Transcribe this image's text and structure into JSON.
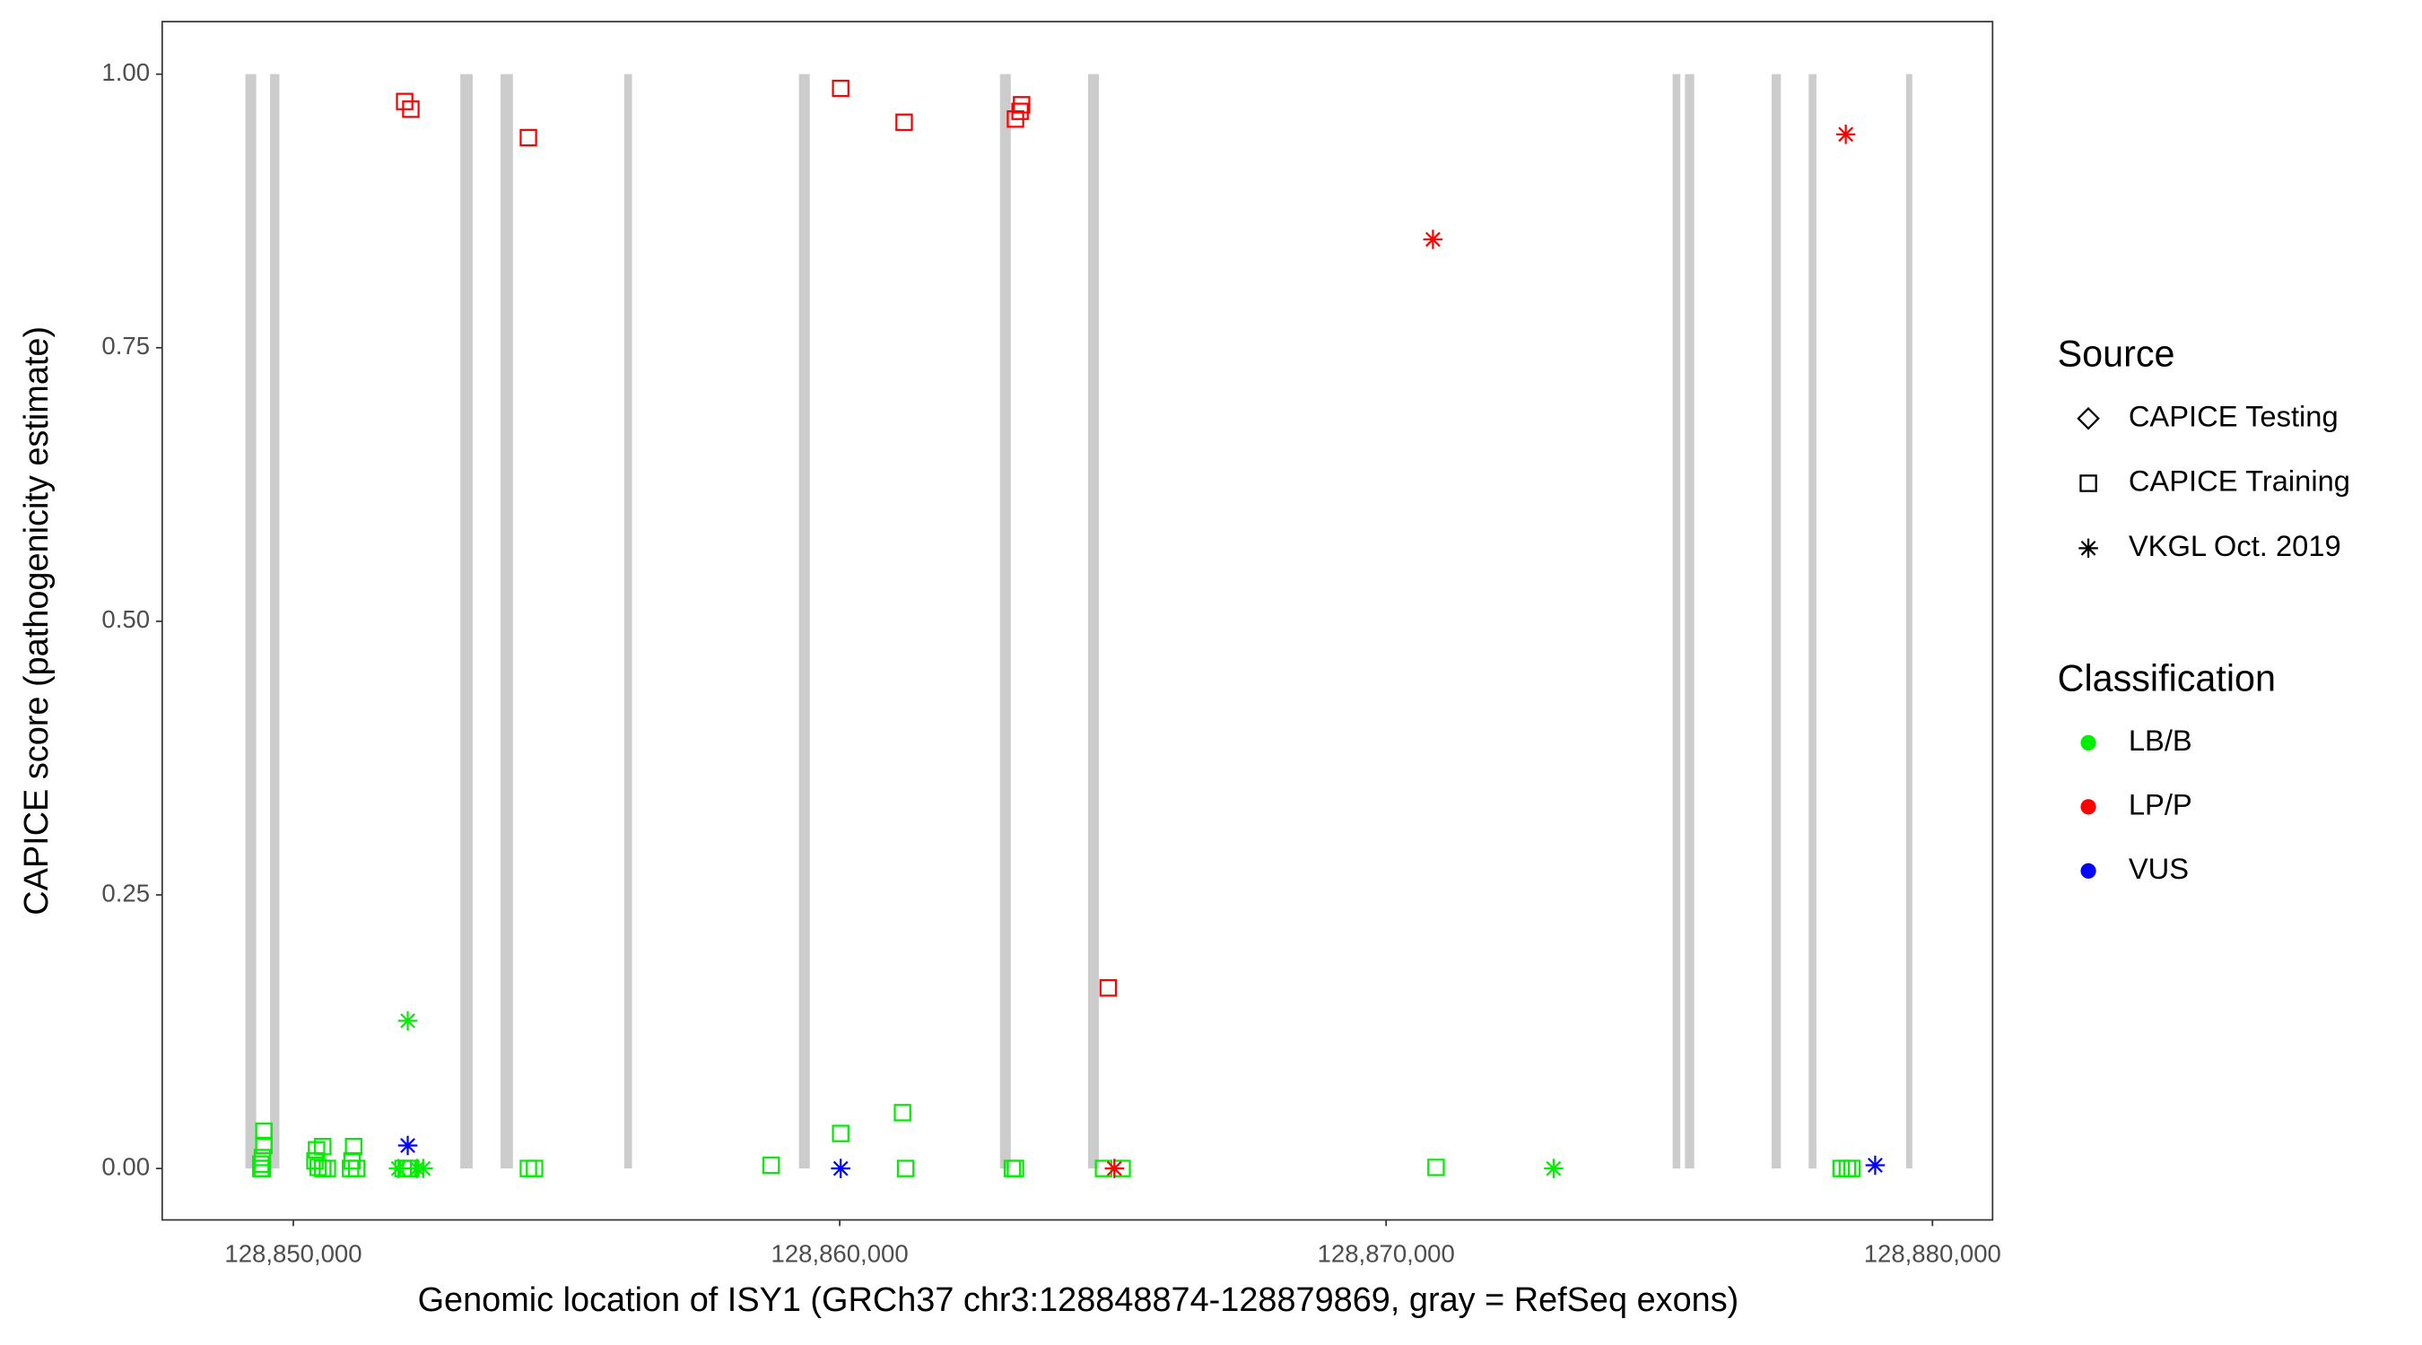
{
  "chart_data": {
    "type": "scatter",
    "xlabel": "Genomic location of ISY1 (GRCh37 chr3:128848874-128879869, gray = RefSeq exons)",
    "ylabel": "CAPICE score (pathogenicity estimate)",
    "xlim": [
      128847600,
      128881100
    ],
    "ylim": [
      -0.047,
      1.048
    ],
    "xticks": [
      {
        "value": 128850000,
        "label": "128,850,000"
      },
      {
        "value": 128860000,
        "label": "128,860,000"
      },
      {
        "value": 128870000,
        "label": "128,870,000"
      },
      {
        "value": 128880000,
        "label": "128,880,000"
      }
    ],
    "yticks": [
      {
        "value": 0,
        "label": "0.00"
      },
      {
        "value": 0.25,
        "label": "0.25"
      },
      {
        "value": 0.5,
        "label": "0.50"
      },
      {
        "value": 0.75,
        "label": "0.75"
      },
      {
        "value": 1,
        "label": "1.00"
      }
    ],
    "grid": false,
    "exon_color": "#cccccc",
    "exon_span": [
      0,
      1
    ],
    "exons": [
      [
        128849123,
        128849321
      ],
      [
        128849575,
        128849745
      ],
      [
        128853056,
        128853283
      ],
      [
        128853792,
        128854019
      ],
      [
        128856056,
        128856198
      ],
      [
        128859254,
        128859452
      ],
      [
        128862933,
        128863131
      ],
      [
        128864546,
        128864744
      ],
      [
        128875244,
        128875385
      ],
      [
        128875470,
        128875640
      ],
      [
        128877055,
        128877225
      ],
      [
        128877734,
        128877876
      ],
      [
        128879517,
        128879630
      ]
    ],
    "source_title": "Source",
    "sources": [
      {
        "name": "CAPICE Testing",
        "shape": "diamond",
        "series": []
      },
      {
        "name": "CAPICE Training",
        "shape": "square",
        "series": [
          {
            "classification": "LB/B",
            "x": [
              128849462,
              128849462,
              128849434,
              128849406,
              128849406,
              128849434,
              128850425,
              128850538,
              128850396,
              128850453,
              128850538,
              128850623,
              128851104,
              128851075,
              128851047,
              128851160,
              128852009,
              128852094,
              128852151,
              128854302,
              128854415,
              128858745,
              128860018,
              128861150,
              128861207,
              128863160,
              128863217,
              128864829,
              128865169,
              128870914,
              128878328,
              128878442,
              128878526
            ],
            "values": [
              0.034,
              0.021,
              0.01,
              0.004,
              0,
              0,
              0.017,
              0.02,
              0.007,
              0.001,
              0,
              0,
              0.02,
              0.007,
              0,
              0,
              0,
              0,
              0,
              0,
              0,
              0.003,
              0.032,
              0.051,
              0,
              0,
              0,
              0,
              0,
              0.001,
              0,
              0,
              0
            ]
          },
          {
            "classification": "LP/P",
            "x": [
              128852038,
              128852151,
              128854302,
              128860018,
              128861179,
              128863217,
              128863329,
              128863301,
              128864914
            ],
            "values": [
              0.975,
              0.968,
              0.942,
              0.987,
              0.956,
              0.959,
              0.972,
              0.966,
              0.165
            ]
          }
        ]
      },
      {
        "name": "VKGL Oct. 2019",
        "shape": "asterisk",
        "series": [
          {
            "classification": "LB/B",
            "x": [
              128852094,
              128851924,
              128852264,
              128852377,
              128873065
            ],
            "values": [
              0.135,
              0,
              0,
              0,
              0
            ]
          },
          {
            "classification": "LP/P",
            "x": [
              128870857,
              128878413,
              128865027
            ],
            "values": [
              0.849,
              0.945,
              0
            ]
          },
          {
            "classification": "VUS",
            "x": [
              128852094,
              128860018,
              128878951
            ],
            "values": [
              0.021,
              0,
              0.003
            ]
          }
        ]
      }
    ],
    "classification_title": "Classification",
    "classifications": [
      {
        "name": "LB/B",
        "color": "#00ee00"
      },
      {
        "name": "LP/P",
        "color": "#ff0000"
      },
      {
        "name": "VUS",
        "color": "#0000ff"
      }
    ]
  }
}
